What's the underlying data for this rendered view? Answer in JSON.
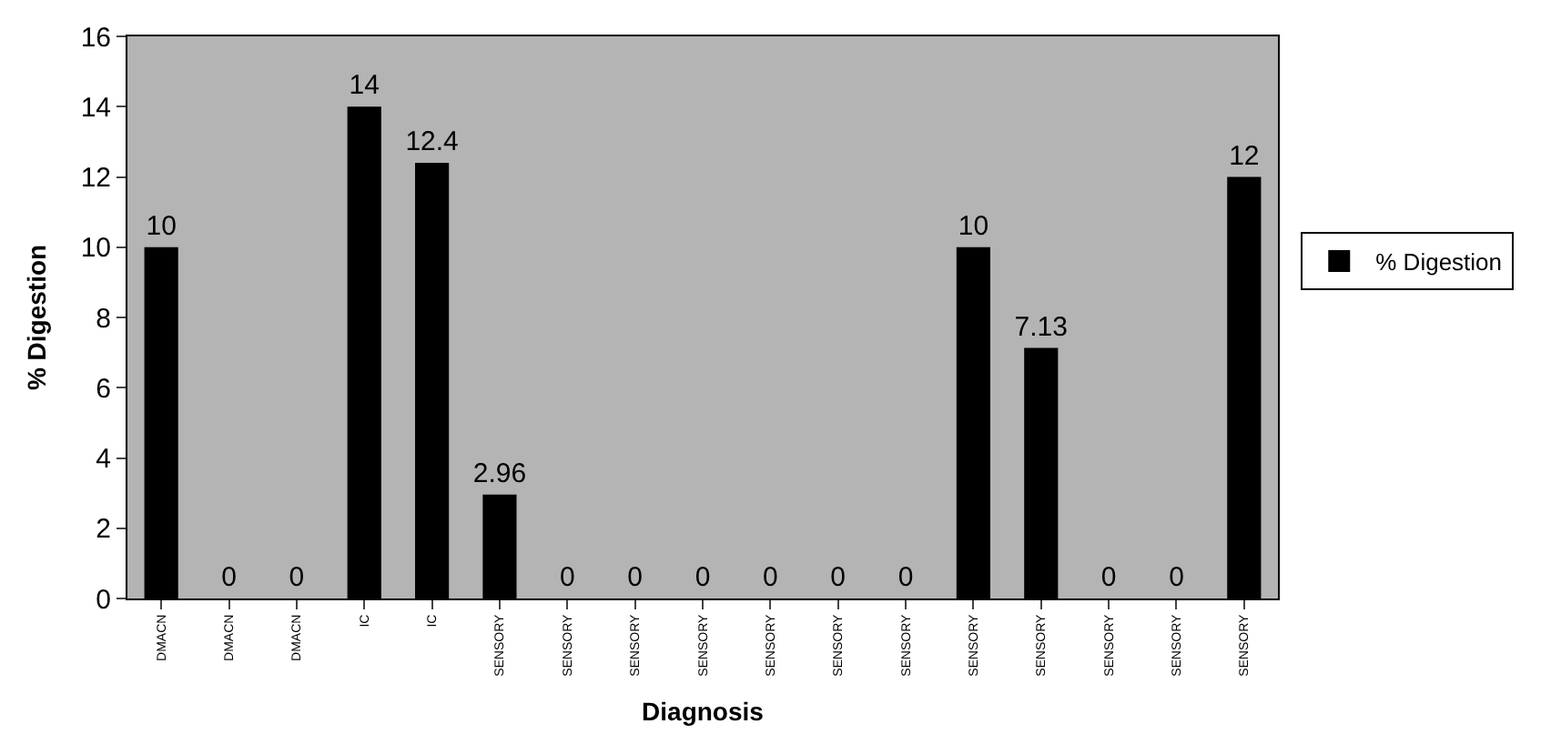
{
  "chart_data": {
    "type": "bar",
    "xlabel": "Diagnosis",
    "ylabel": "% Digestion",
    "categories": [
      "DMACN",
      "DMACN",
      "DMACN",
      "IC",
      "IC",
      "SENSORY",
      "SENSORY",
      "SENSORY",
      "SENSORY",
      "SENSORY",
      "SENSORY",
      "SENSORY",
      "SENSORY",
      "SENSORY",
      "SENSORY",
      "SENSORY",
      "SENSORY"
    ],
    "series": [
      {
        "name": "% Digestion",
        "color": "#000000",
        "values": [
          10,
          0,
          0,
          14,
          12.4,
          2.96,
          0,
          0,
          0,
          0,
          0,
          0,
          10,
          7.13,
          0,
          0,
          12
        ]
      }
    ],
    "ylim": [
      0,
      16
    ],
    "yticks": [
      0,
      2,
      4,
      6,
      8,
      10,
      12,
      14,
      16
    ],
    "grid": false,
    "legend": "right",
    "data_labels": true
  }
}
